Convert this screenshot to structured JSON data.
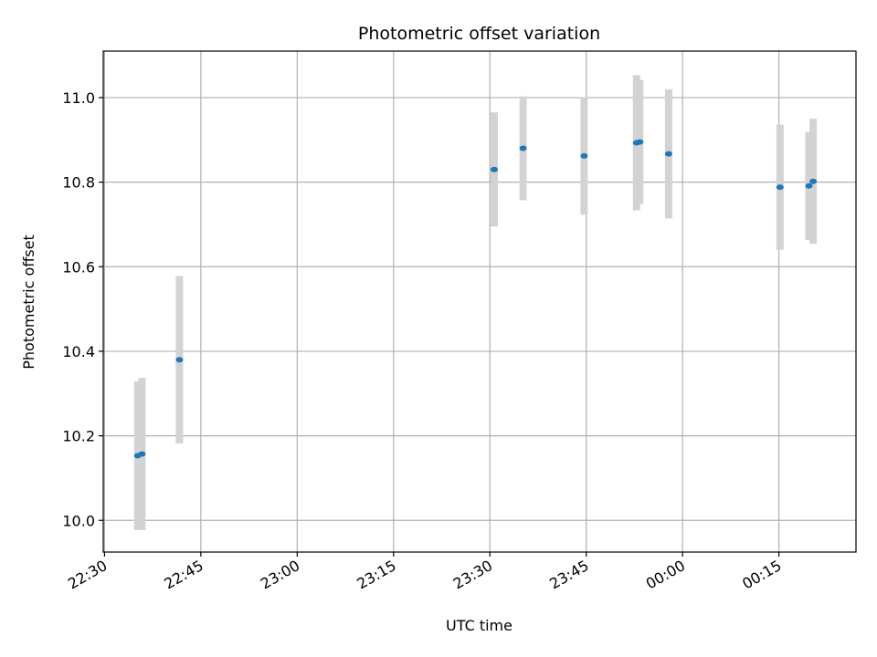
{
  "chart_data": {
    "type": "scatter",
    "title": "Photometric offset variation",
    "xlabel": "UTC time",
    "ylabel": "Photometric offset",
    "grid": true,
    "xlim_minutes": [
      1349.8,
      1467.0
    ],
    "ylim": [
      9.925,
      11.11
    ],
    "x_ticks": [
      {
        "minutes": 1350,
        "label": "22:30"
      },
      {
        "minutes": 1365,
        "label": "22:45"
      },
      {
        "minutes": 1380,
        "label": "23:00"
      },
      {
        "minutes": 1395,
        "label": "23:15"
      },
      {
        "minutes": 1410,
        "label": "23:30"
      },
      {
        "minutes": 1425,
        "label": "23:45"
      },
      {
        "minutes": 1440,
        "label": "00:00"
      },
      {
        "minutes": 1455,
        "label": "00:15"
      }
    ],
    "y_ticks": [
      {
        "value": 10.0,
        "label": "10.0"
      },
      {
        "value": 10.2,
        "label": "10.2"
      },
      {
        "value": 10.4,
        "label": "10.4"
      },
      {
        "value": 10.6,
        "label": "10.6"
      },
      {
        "value": 10.8,
        "label": "10.8"
      },
      {
        "value": 11.0,
        "label": "11.0"
      }
    ],
    "colors": {
      "points": "#1f77b4",
      "error_bars": "#d3d3d3",
      "grid": "#b0b0b0"
    },
    "points": [
      {
        "time": "22:35:10",
        "minutes": 1355.17,
        "y": 10.153,
        "err": 0.176
      },
      {
        "time": "22:35:50",
        "minutes": 1355.83,
        "y": 10.157,
        "err": 0.18
      },
      {
        "time": "22:41:40",
        "minutes": 1361.67,
        "y": 10.38,
        "err": 0.198
      },
      {
        "time": "23:30:40",
        "minutes": 1410.67,
        "y": 10.83,
        "err": 0.135
      },
      {
        "time": "23:35:10",
        "minutes": 1415.17,
        "y": 10.88,
        "err": 0.123
      },
      {
        "time": "23:44:40",
        "minutes": 1424.67,
        "y": 10.862,
        "err": 0.139
      },
      {
        "time": "23:52:50",
        "minutes": 1432.83,
        "y": 10.893,
        "err": 0.16
      },
      {
        "time": "23:53:20",
        "minutes": 1433.33,
        "y": 10.895,
        "err": 0.147
      },
      {
        "time": "23:57:50",
        "minutes": 1437.83,
        "y": 10.867,
        "err": 0.153
      },
      {
        "time": "00:15:10",
        "minutes": 1455.17,
        "y": 10.788,
        "err": 0.148
      },
      {
        "time": "00:19:40",
        "minutes": 1459.67,
        "y": 10.791,
        "err": 0.128
      },
      {
        "time": "00:20:20",
        "minutes": 1460.33,
        "y": 10.802,
        "err": 0.148
      }
    ]
  }
}
